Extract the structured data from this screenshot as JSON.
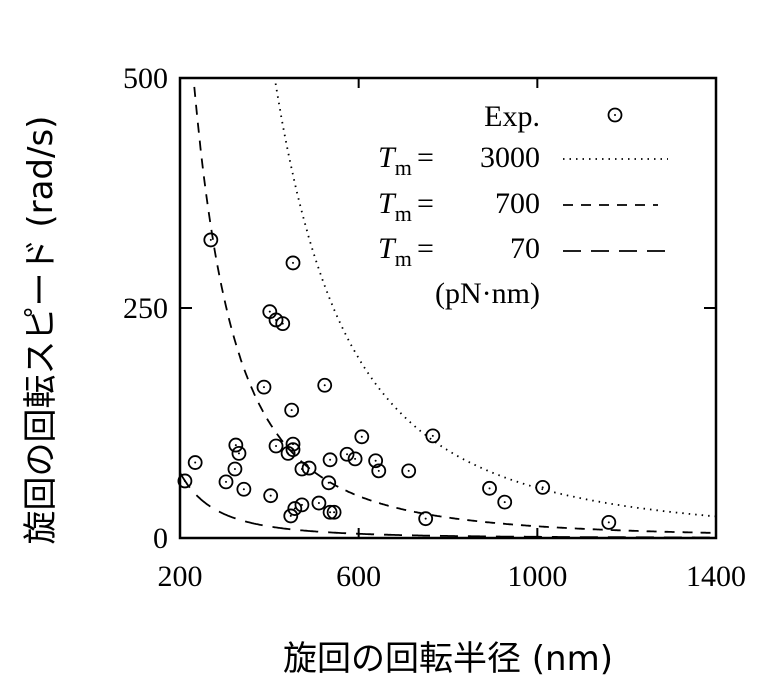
{
  "chart_data": {
    "type": "scatter",
    "xlabel": "旋回の回転半径 (nm)",
    "ylabel": "旋回の回転スピード (rad/s)",
    "xlim": [
      200,
      1400
    ],
    "ylim": [
      0,
      500
    ],
    "xticks": [
      200,
      600,
      1000,
      1400
    ],
    "yticks": [
      0,
      250,
      500
    ],
    "grid": false,
    "legend_position": "top-right",
    "legend": {
      "exp_label": "Exp.",
      "tm_symbol": "T",
      "tm_sub": "m",
      "eq": "=",
      "curve_values": [
        "3000",
        "700",
        "70"
      ],
      "unit": "(pN·nm)"
    },
    "series": [
      {
        "name": "Exp.",
        "kind": "points",
        "marker": "circle-dot",
        "points": [
          [
            269,
            324
          ],
          [
            453,
            299
          ],
          [
            401,
            246
          ],
          [
            415,
            237
          ],
          [
            430,
            233
          ],
          [
            388,
            164
          ],
          [
            524,
            166
          ],
          [
            450,
            139
          ],
          [
            766,
            111
          ],
          [
            607,
            110
          ],
          [
            325,
            101
          ],
          [
            332,
            92
          ],
          [
            415,
            100
          ],
          [
            453,
            102
          ],
          [
            442,
            92
          ],
          [
            453,
            96
          ],
          [
            234,
            82
          ],
          [
            323,
            75
          ],
          [
            536,
            85
          ],
          [
            574,
            91
          ],
          [
            592,
            86
          ],
          [
            638,
            84
          ],
          [
            645,
            73
          ],
          [
            712,
            73
          ],
          [
            473,
            75
          ],
          [
            489,
            76
          ],
          [
            303,
            61
          ],
          [
            211,
            62
          ],
          [
            533,
            60
          ],
          [
            343,
            53
          ],
          [
            403,
            46
          ],
          [
            511,
            38
          ],
          [
            473,
            36
          ],
          [
            457,
            32
          ],
          [
            448,
            24
          ],
          [
            536,
            28
          ],
          [
            545,
            28
          ],
          [
            750,
            21
          ],
          [
            893,
            54
          ],
          [
            927,
            39
          ],
          [
            1012,
            55
          ],
          [
            1160,
            17
          ]
        ]
      },
      {
        "name": "T_m = 3000",
        "kind": "curve",
        "Tm": 3000,
        "style": "dotted"
      },
      {
        "name": "T_m = 700",
        "kind": "curve",
        "Tm": 700,
        "style": "dashed"
      },
      {
        "name": "T_m = 70",
        "kind": "curve",
        "Tm": 70,
        "style": "long-dashed"
      }
    ]
  }
}
